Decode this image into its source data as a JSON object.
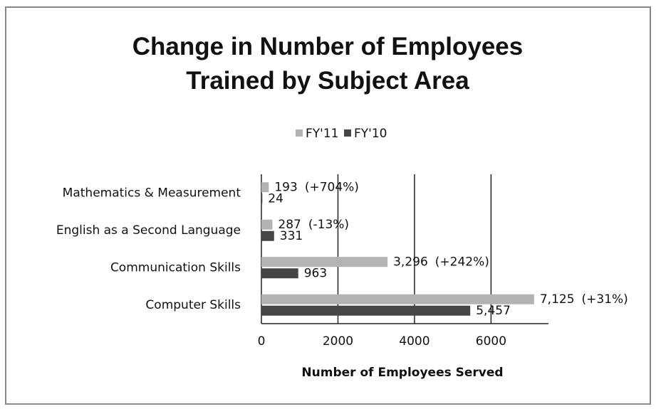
{
  "chart_data": {
    "type": "bar",
    "orientation": "horizontal",
    "title": "Change in Number of Employees Trained by Subject Area",
    "x_label": "Number of Employees Served",
    "categories": [
      "Mathematics & Measurement",
      "English as a Second Language",
      "Communication Skills",
      "Computer Skills"
    ],
    "series": [
      {
        "name": "FY'11",
        "color": "#b3b3b3",
        "values": [
          193,
          287,
          3296,
          7125
        ],
        "value_labels": [
          "193",
          "287",
          "3,296",
          "7,125"
        ],
        "change_labels": [
          "(+704%)",
          "(-13%)",
          "(+242%)",
          "(+31%)"
        ]
      },
      {
        "name": "FY'10",
        "color": "#454545",
        "values": [
          24,
          331,
          963,
          5457
        ],
        "value_labels": [
          "24",
          "331",
          "963",
          "5,457"
        ]
      }
    ],
    "xlim": [
      0,
      7500
    ],
    "xticks": [
      0,
      2000,
      4000,
      6000
    ],
    "grid": true,
    "legend": "top"
  }
}
